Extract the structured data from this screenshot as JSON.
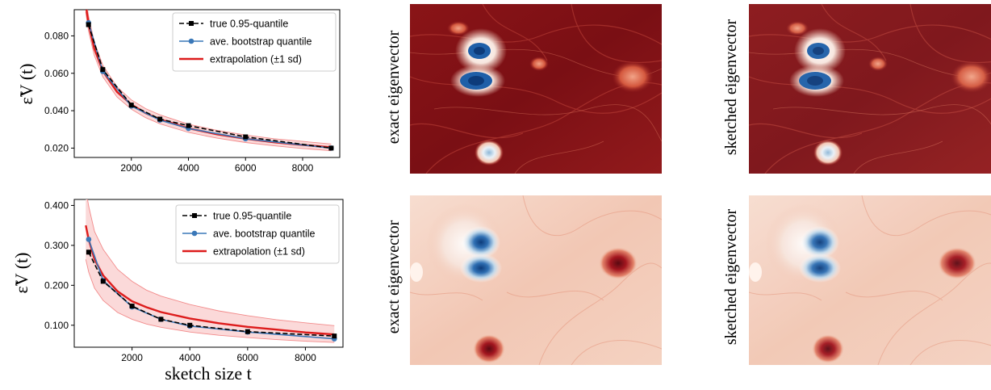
{
  "colors": {
    "true": "#000000",
    "bootstrap": "#3a78b8",
    "extrapolation": "#dd1c1c",
    "band_fill": "#fbd9d9",
    "band_edge": "#f28b8b"
  },
  "chart_data": [
    {
      "type": "line",
      "ylabel": "ε̃V (t)",
      "xlabel": "",
      "xlim": [
        0,
        9300
      ],
      "ylim": [
        0.015,
        0.094
      ],
      "xticks": [
        2000,
        4000,
        6000,
        8000
      ],
      "xtick_labels": [
        "2000",
        "4000",
        "6000",
        "8000"
      ],
      "yticks": [
        0.02,
        0.04,
        0.06,
        0.08
      ],
      "ytick_labels": [
        "0.020",
        "0.040",
        "0.060",
        "0.080"
      ],
      "legend": "top-right",
      "legend_entries": [
        "true 0.95-quantile",
        "ave. bootstrap quantile",
        "extrapolation (±1 sd)"
      ],
      "series": [
        {
          "name": "true 0.95-quantile",
          "style": "dashed-square",
          "x": [
            500,
            1000,
            2000,
            3000,
            4000,
            6000,
            9000
          ],
          "y": [
            0.086,
            0.062,
            0.043,
            0.0355,
            0.032,
            0.026,
            0.02
          ]
        },
        {
          "name": "ave. bootstrap quantile",
          "style": "solid-circle",
          "x": [
            500,
            1000,
            2000,
            3000,
            4000,
            6000,
            9000
          ],
          "y": [
            0.087,
            0.061,
            0.0425,
            0.035,
            0.0305,
            0.025,
            0.02
          ]
        },
        {
          "name": "extrapolation (±1 sd)",
          "style": "curve-with-band",
          "x": [
            400,
            500,
            700,
            1000,
            1500,
            2000,
            2500,
            3000,
            4000,
            5000,
            6000,
            7000,
            8000,
            9000
          ],
          "y": [
            0.0968,
            0.0866,
            0.0732,
            0.0612,
            0.05,
            0.0433,
            0.0387,
            0.0354,
            0.0306,
            0.0274,
            0.025,
            0.0231,
            0.0217,
            0.0204
          ],
          "lower": [
            0.0928,
            0.0826,
            0.0696,
            0.0581,
            0.0473,
            0.0408,
            0.0363,
            0.033,
            0.0284,
            0.0253,
            0.023,
            0.0212,
            0.0198,
            0.0186
          ],
          "upper": [
            0.1008,
            0.0906,
            0.0768,
            0.0643,
            0.0527,
            0.0458,
            0.0411,
            0.0378,
            0.0328,
            0.0295,
            0.027,
            0.025,
            0.0236,
            0.0222
          ]
        }
      ]
    },
    {
      "type": "line",
      "ylabel": "ε̃V (t)",
      "xlabel": "sketch size t",
      "xlim": [
        0,
        9300
      ],
      "ylim": [
        0.045,
        0.415
      ],
      "xticks": [
        2000,
        4000,
        6000,
        8000
      ],
      "xtick_labels": [
        "2000",
        "4000",
        "6000",
        "8000"
      ],
      "yticks": [
        0.1,
        0.2,
        0.3,
        0.4
      ],
      "ytick_labels": [
        "0.100",
        "0.200",
        "0.300",
        "0.400"
      ],
      "legend": "top-right",
      "legend_entries": [
        "true 0.95-quantile",
        "ave. bootstrap quantile",
        "extrapolation (±1 sd)"
      ],
      "series": [
        {
          "name": "true 0.95-quantile",
          "style": "dashed-square",
          "x": [
            500,
            1000,
            2000,
            3000,
            4000,
            6000,
            9000
          ],
          "y": [
            0.283,
            0.21,
            0.148,
            0.115,
            0.1,
            0.084,
            0.073
          ]
        },
        {
          "name": "ave. bootstrap quantile",
          "style": "solid-circle",
          "x": [
            500,
            1000,
            2000,
            3000,
            4000,
            6000,
            9000
          ],
          "y": [
            0.315,
            0.212,
            0.146,
            0.115,
            0.098,
            0.083,
            0.066
          ]
        },
        {
          "name": "extrapolation (±1 sd)",
          "style": "curve-with-band",
          "x": [
            400,
            500,
            700,
            1000,
            1500,
            2000,
            2500,
            3000,
            4000,
            5000,
            6000,
            7000,
            8000,
            9000
          ],
          "y": [
            0.35,
            0.315,
            0.265,
            0.225,
            0.185,
            0.16,
            0.145,
            0.133,
            0.117,
            0.105,
            0.096,
            0.089,
            0.082,
            0.077
          ],
          "lower": [
            0.265,
            0.233,
            0.193,
            0.162,
            0.132,
            0.115,
            0.103,
            0.095,
            0.083,
            0.075,
            0.069,
            0.064,
            0.06,
            0.057
          ],
          "upper": [
            0.44,
            0.398,
            0.335,
            0.29,
            0.24,
            0.21,
            0.188,
            0.173,
            0.152,
            0.136,
            0.124,
            0.114,
            0.106,
            0.099
          ]
        }
      ]
    }
  ],
  "panels": [
    {
      "label": "exact eigenvector",
      "theme": "dark-red",
      "field": "vorticity-top"
    },
    {
      "label": "sketched eigenvector",
      "theme": "dark-red",
      "field": "vorticity-top"
    },
    {
      "label": "exact eigenvector",
      "theme": "light",
      "field": "vorticity-bottom"
    },
    {
      "label": "sketched eigenvector",
      "theme": "light",
      "field": "vorticity-bottom"
    }
  ]
}
